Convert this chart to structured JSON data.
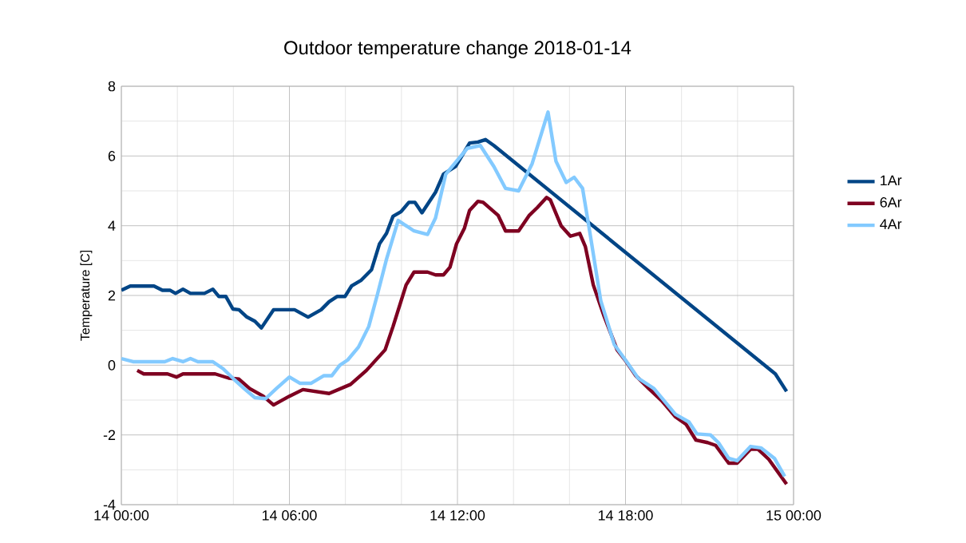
{
  "chart_data": {
    "type": "line",
    "title": "Outdoor temperature change 2018-01-14",
    "ylabel": "Temperature [C]",
    "xlim": [
      "2018-01-14T00:00",
      "2018-01-15T00:00"
    ],
    "ylim": [
      -4,
      8
    ],
    "xticks": [
      {
        "value": "2018-01-14T00:00",
        "label": "14 00:00"
      },
      {
        "value": "2018-01-14T06:00",
        "label": "14 06:00"
      },
      {
        "value": "2018-01-14T12:00",
        "label": "14 12:00"
      },
      {
        "value": "2018-01-14T18:00",
        "label": "14 18:00"
      },
      {
        "value": "2018-01-15T00:00",
        "label": "15 00:00"
      }
    ],
    "yticks": [
      -4,
      -2,
      0,
      2,
      4,
      6,
      8
    ],
    "grid": true,
    "legend": "right",
    "marker": "none",
    "line_style": "solid",
    "series": [
      {
        "name": "1Ar",
        "color": "#004586",
        "x": [
          "2018-01-14T00:00",
          "2018-01-14T00:19",
          "2018-01-14T01:10",
          "2018-01-14T01:28",
          "2018-01-14T01:44",
          "2018-01-14T01:56",
          "2018-01-14T02:12",
          "2018-01-14T02:28",
          "2018-01-14T02:58",
          "2018-01-14T03:16",
          "2018-01-14T03:29",
          "2018-01-14T03:44",
          "2018-01-14T03:59",
          "2018-01-14T04:12",
          "2018-01-14T04:29",
          "2018-01-14T04:46",
          "2018-01-14T05:00",
          "2018-01-14T05:26",
          "2018-01-14T06:11",
          "2018-01-14T06:40",
          "2018-01-14T07:08",
          "2018-01-14T07:25",
          "2018-01-14T07:42",
          "2018-01-14T07:59",
          "2018-01-14T08:13",
          "2018-01-14T08:34",
          "2018-01-14T08:56",
          "2018-01-14T09:13",
          "2018-01-14T09:28",
          "2018-01-14T09:42",
          "2018-01-14T09:59",
          "2018-01-14T10:16",
          "2018-01-14T10:29",
          "2018-01-14T10:44",
          "2018-01-14T11:13",
          "2018-01-14T11:30",
          "2018-01-14T11:56",
          "2018-01-14T12:26",
          "2018-01-14T12:44",
          "2018-01-14T13:00",
          "2018-01-14T13:18",
          "2018-01-14T23:21",
          "2018-01-14T23:45"
        ],
        "values": [
          2.15,
          2.27,
          2.27,
          2.15,
          2.15,
          2.06,
          2.18,
          2.06,
          2.06,
          2.18,
          1.97,
          1.97,
          1.61,
          1.59,
          1.38,
          1.26,
          1.07,
          1.59,
          1.59,
          1.38,
          1.59,
          1.82,
          1.97,
          1.97,
          2.27,
          2.44,
          2.74,
          3.48,
          3.78,
          4.27,
          4.4,
          4.67,
          4.67,
          4.37,
          4.96,
          5.48,
          5.7,
          6.37,
          6.4,
          6.47,
          6.3,
          -0.25,
          -0.75
        ]
      },
      {
        "name": "6Ar",
        "color": "#7e0021",
        "x": [
          "2018-01-14T00:34",
          "2018-01-14T00:48",
          "2018-01-14T01:39",
          "2018-01-14T01:58",
          "2018-01-14T02:12",
          "2018-01-14T03:21",
          "2018-01-14T03:50",
          "2018-01-14T04:12",
          "2018-01-14T04:35",
          "2018-01-14T05:04",
          "2018-01-14T05:26",
          "2018-01-14T06:00",
          "2018-01-14T06:29",
          "2018-01-14T07:25",
          "2018-01-14T08:11",
          "2018-01-14T08:45",
          "2018-01-14T09:25",
          "2018-01-14T09:42",
          "2018-01-14T10:10",
          "2018-01-14T10:27",
          "2018-01-14T10:56",
          "2018-01-14T11:13",
          "2018-01-14T11:30",
          "2018-01-14T11:44",
          "2018-01-14T11:58",
          "2018-01-14T12:15",
          "2018-01-14T12:26",
          "2018-01-14T12:44",
          "2018-01-14T12:55",
          "2018-01-14T13:27",
          "2018-01-14T13:43",
          "2018-01-14T14:11",
          "2018-01-14T14:34",
          "2018-01-14T14:51",
          "2018-01-14T15:11",
          "2018-01-14T15:19",
          "2018-01-14T15:42",
          "2018-01-14T16:02",
          "2018-01-14T16:22",
          "2018-01-14T16:34",
          "2018-01-14T16:51",
          "2018-01-14T17:14",
          "2018-01-14T17:42",
          "2018-01-14T17:59",
          "2018-01-14T18:22",
          "2018-01-14T18:50",
          "2018-01-14T19:19",
          "2018-01-14T19:47",
          "2018-01-14T20:10",
          "2018-01-14T20:31",
          "2018-01-14T20:56",
          "2018-01-14T21:13",
          "2018-01-14T21:41",
          "2018-01-14T21:59",
          "2018-01-14T22:28",
          "2018-01-14T22:44",
          "2018-01-14T23:07",
          "2018-01-14T23:25",
          "2018-01-14T23:45"
        ],
        "values": [
          -0.15,
          -0.25,
          -0.25,
          -0.34,
          -0.25,
          -0.25,
          -0.37,
          -0.4,
          -0.67,
          -0.89,
          -1.14,
          -0.89,
          -0.7,
          -0.81,
          -0.55,
          -0.15,
          0.44,
          1.11,
          2.3,
          2.67,
          2.67,
          2.59,
          2.59,
          2.81,
          3.48,
          3.93,
          4.44,
          4.7,
          4.67,
          4.3,
          3.85,
          3.85,
          4.3,
          4.52,
          4.81,
          4.74,
          4.0,
          3.7,
          3.78,
          3.4,
          2.3,
          1.41,
          0.44,
          0.15,
          -0.3,
          -0.67,
          -1.04,
          -1.48,
          -1.7,
          -2.15,
          -2.22,
          -2.3,
          -2.81,
          -2.81,
          -2.41,
          -2.41,
          -2.7,
          -3.04,
          -3.41
        ]
      },
      {
        "name": "4Ar",
        "color": "#83caff",
        "x": [
          "2018-01-14T00:00",
          "2018-01-14T00:25",
          "2018-01-14T01:33",
          "2018-01-14T01:50",
          "2018-01-14T02:12",
          "2018-01-14T02:28",
          "2018-01-14T02:44",
          "2018-01-14T03:16",
          "2018-01-14T03:38",
          "2018-01-14T04:01",
          "2018-01-14T04:23",
          "2018-01-14T04:46",
          "2018-01-14T05:09",
          "2018-01-14T05:32",
          "2018-01-14T06:00",
          "2018-01-14T06:23",
          "2018-01-14T06:46",
          "2018-01-14T07:14",
          "2018-01-14T07:31",
          "2018-01-14T07:48",
          "2018-01-14T08:05",
          "2018-01-14T08:28",
          "2018-01-14T08:50",
          "2018-01-14T09:08",
          "2018-01-14T09:28",
          "2018-01-14T09:53",
          "2018-01-14T10:27",
          "2018-01-14T10:56",
          "2018-01-14T11:13",
          "2018-01-14T11:35",
          "2018-01-14T12:21",
          "2018-01-14T12:49",
          "2018-01-14T13:18",
          "2018-01-14T13:43",
          "2018-01-14T14:11",
          "2018-01-14T14:40",
          "2018-01-14T15:14",
          "2018-01-14T15:31",
          "2018-01-14T15:53",
          "2018-01-14T16:10",
          "2018-01-14T16:28",
          "2018-01-14T16:44",
          "2018-01-14T17:07",
          "2018-01-14T17:36",
          "2018-01-14T18:04",
          "2018-01-14T18:27",
          "2018-01-14T19:01",
          "2018-01-14T19:47",
          "2018-01-14T20:16",
          "2018-01-14T20:33",
          "2018-01-14T21:02",
          "2018-01-14T21:19",
          "2018-01-14T21:41",
          "2018-01-14T21:59",
          "2018-01-14T22:28",
          "2018-01-14T22:50",
          "2018-01-14T23:19",
          "2018-01-14T23:41"
        ],
        "values": [
          0.19,
          0.1,
          0.1,
          0.19,
          0.1,
          0.19,
          0.1,
          0.1,
          -0.1,
          -0.4,
          -0.67,
          -0.93,
          -0.96,
          -0.67,
          -0.34,
          -0.52,
          -0.52,
          -0.3,
          -0.3,
          0,
          0.15,
          0.52,
          1.11,
          2.0,
          3.04,
          4.15,
          3.85,
          3.75,
          4.22,
          5.48,
          6.22,
          6.3,
          5.7,
          5.07,
          5.0,
          5.78,
          7.26,
          5.85,
          5.24,
          5.39,
          5.07,
          3.78,
          1.85,
          0.59,
          0.07,
          -0.37,
          -0.67,
          -1.41,
          -1.63,
          -1.97,
          -2.0,
          -2.22,
          -2.67,
          -2.74,
          -2.33,
          -2.37,
          -2.67,
          -3.19
        ]
      }
    ]
  }
}
